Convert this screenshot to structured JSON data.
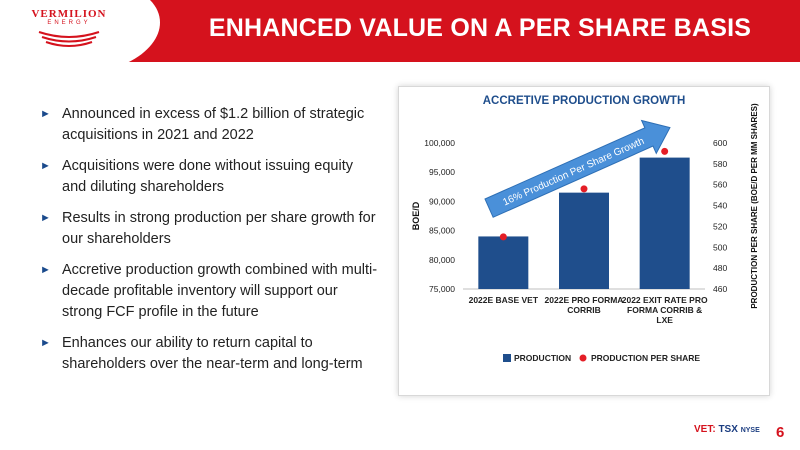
{
  "header": {
    "logo_text": "VERMILION",
    "logo_subtext": "ENERGY",
    "title": "ENHANCED VALUE ON A PER SHARE BASIS"
  },
  "bullets": [
    {
      "text": "Announced in excess of $1.2 billion of strategic acquisitions in 2021 and 2022"
    },
    {
      "text": "Acquisitions were done without issuing equity and diluting shareholders"
    },
    {
      "text": "Results in strong production per share growth for our shareholders"
    },
    {
      "text": "Accretive production growth combined with multi-decade profitable inventory will support our strong FCF profile in the future"
    },
    {
      "text": "Enhances our ability to return capital to shareholders over the near-term and long-term"
    }
  ],
  "chart_data": {
    "type": "bar",
    "title": "ACCRETIVE PRODUCTION GROWTH",
    "categories": [
      "2022E BASE VET",
      "2022E PRO FORMA CORRIB",
      "2022 EXIT RATE PRO FORMA CORRIB & LXE"
    ],
    "ylabel": "BOE/D",
    "y2label": "PRODUCTION PER SHARE (BOE/D PER MM SHARES)",
    "ylim": [
      75000,
      100000
    ],
    "y2lim": [
      460,
      600
    ],
    "yticks": [
      "75,000",
      "80,000",
      "85,000",
      "90,000",
      "95,000",
      "100,000"
    ],
    "y2ticks": [
      "460",
      "480",
      "500",
      "520",
      "540",
      "560",
      "580",
      "600"
    ],
    "series": [
      {
        "name": "PRODUCTION",
        "values": [
          84000,
          91500,
          97500
        ],
        "color": "#1f4e8c"
      },
      {
        "name": "PRODUCTION PER SHARE",
        "values": [
          510,
          556,
          592
        ],
        "color": "#e41e26"
      }
    ],
    "annotation": "16% Production Per Share Growth",
    "legend": "bottom",
    "grid": false
  },
  "footer": {
    "ticker_label": "VET:",
    "exchange_1": "TSX",
    "exchange_2": "NYSE",
    "page_number": "6"
  }
}
